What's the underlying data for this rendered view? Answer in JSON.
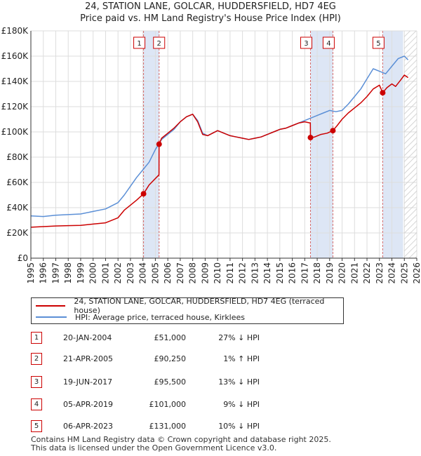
{
  "title_line1": "24, STATION LANE, GOLCAR, HUDDERSFIELD, HD7 4EG",
  "title_line2": "Price paid vs. HM Land Registry's House Price Index (HPI)",
  "colors": {
    "property": "#cc0000",
    "hpi": "#5b8fd6",
    "shade": "#dde6f5",
    "marker_line": "#d46a6a",
    "grid": "#dddddd"
  },
  "chart_data": {
    "type": "line",
    "title": "Price paid vs. HM Land Registry's House Price Index (HPI)",
    "xlabel": "",
    "ylabel": "",
    "xlim": [
      1995,
      2026
    ],
    "ylim": [
      0,
      180000
    ],
    "x_ticks": [
      "1995",
      "1996",
      "1997",
      "1998",
      "1999",
      "2000",
      "2001",
      "2002",
      "2003",
      "2004",
      "2005",
      "2006",
      "2007",
      "2008",
      "2009",
      "2010",
      "2011",
      "2012",
      "2013",
      "2014",
      "2015",
      "2016",
      "2017",
      "2018",
      "2019",
      "2020",
      "2021",
      "2022",
      "2023",
      "2024",
      "2025",
      "2026"
    ],
    "y_ticks": [
      {
        "value": 0,
        "label": "£0"
      },
      {
        "value": 20000,
        "label": "£20K"
      },
      {
        "value": 40000,
        "label": "£40K"
      },
      {
        "value": 60000,
        "label": "£60K"
      },
      {
        "value": 80000,
        "label": "£80K"
      },
      {
        "value": 100000,
        "label": "£100K"
      },
      {
        "value": 120000,
        "label": "£120K"
      },
      {
        "value": 140000,
        "label": "£140K"
      },
      {
        "value": 160000,
        "label": "£160K"
      },
      {
        "value": 180000,
        "label": "£180K"
      }
    ],
    "shaded_regions": [
      [
        2004.05,
        2005.3
      ],
      [
        2017.46,
        2019.26
      ],
      [
        2023.26,
        2024.9
      ]
    ],
    "future_hatch_from": 2025.0,
    "series": [
      {
        "name": "24, STATION LANE, GOLCAR, HUDDERSFIELD, HD7 4EG (terraced house)",
        "color": "#cc0000",
        "x": [
          1995,
          1996,
          1997,
          1998,
          1999,
          2000,
          2001,
          2002,
          2002.5,
          2003,
          2003.5,
          2004.05,
          2004.5,
          2005.29,
          2005.3,
          2005.5,
          2006,
          2006.5,
          2007,
          2007.5,
          2008,
          2008.4,
          2008.8,
          2009.2,
          2009.6,
          2010,
          2010.5,
          2011,
          2011.5,
          2012,
          2012.5,
          2013,
          2013.5,
          2014,
          2014.5,
          2015,
          2015.5,
          2016,
          2016.5,
          2017,
          2017.45,
          2017.46,
          2017.8,
          2018.3,
          2018.8,
          2019.26,
          2019.6,
          2020,
          2020.5,
          2021,
          2021.5,
          2022,
          2022.5,
          2023.0,
          2023.26,
          2023.6,
          2024,
          2024.3,
          2024.7,
          2025,
          2025.3
        ],
        "values": [
          24500,
          25000,
          25500,
          25800,
          26000,
          27000,
          28000,
          32000,
          38000,
          42000,
          46000,
          51000,
          58000,
          66000,
          90250,
          95000,
          99000,
          103000,
          108000,
          112000,
          114000,
          108000,
          98000,
          97000,
          99000,
          101000,
          99000,
          97000,
          96000,
          95000,
          94000,
          95000,
          96000,
          98000,
          100000,
          102000,
          103000,
          105000,
          107000,
          108000,
          107000,
          95500,
          96000,
          98000,
          99000,
          101000,
          105000,
          110000,
          115000,
          119000,
          123000,
          128000,
          134000,
          137000,
          131000,
          135000,
          138000,
          136000,
          141000,
          145000,
          143000
        ]
      },
      {
        "name": "HPI: Average price, terraced house, Kirklees",
        "color": "#5b8fd6",
        "x": [
          1995,
          1996,
          1997,
          1998,
          1999,
          2000,
          2001,
          2002,
          2002.5,
          2003,
          2003.5,
          2004,
          2004.5,
          2005,
          2005.5,
          2006,
          2006.5,
          2007,
          2007.5,
          2008,
          2008.4,
          2008.8,
          2009.2,
          2009.6,
          2010,
          2010.5,
          2011,
          2011.5,
          2012,
          2012.5,
          2013,
          2013.5,
          2014,
          2014.5,
          2015,
          2015.5,
          2016,
          2016.5,
          2017,
          2017.5,
          2018,
          2018.5,
          2019,
          2019.5,
          2020,
          2020.5,
          2021,
          2021.5,
          2022,
          2022.5,
          2023,
          2023.5,
          2024,
          2024.5,
          2025,
          2025.3
        ],
        "values": [
          33500,
          33000,
          34000,
          34500,
          35000,
          37000,
          39000,
          44000,
          50000,
          57000,
          64000,
          70000,
          76000,
          86000,
          94000,
          98000,
          102000,
          108000,
          112000,
          114000,
          109000,
          99000,
          97000,
          99000,
          101000,
          99000,
          97000,
          96000,
          95000,
          94000,
          95000,
          96000,
          98000,
          100000,
          102000,
          103000,
          105000,
          107000,
          109000,
          111000,
          113000,
          115000,
          117000,
          116000,
          117000,
          122000,
          128000,
          134000,
          142000,
          150000,
          148000,
          146000,
          152000,
          158000,
          160000,
          157000
        ]
      }
    ],
    "sales": [
      {
        "label": "1",
        "x": 2004.05,
        "value": 51000
      },
      {
        "label": "2",
        "x": 2005.3,
        "value": 90250
      },
      {
        "label": "3",
        "x": 2017.46,
        "value": 95500
      },
      {
        "label": "4",
        "x": 2019.26,
        "value": 101000
      },
      {
        "label": "5",
        "x": 2023.26,
        "value": 131000
      }
    ]
  },
  "legend": {
    "property": "24, STATION LANE, GOLCAR, HUDDERSFIELD, HD7 4EG (terraced house)",
    "hpi": "HPI: Average price, terraced house, Kirklees"
  },
  "transactions": [
    {
      "num": "1",
      "date": "20-JAN-2004",
      "price": "£51,000",
      "hpi": "27% ↓ HPI"
    },
    {
      "num": "2",
      "date": "21-APR-2005",
      "price": "£90,250",
      "hpi": "1% ↑ HPI"
    },
    {
      "num": "3",
      "date": "19-JUN-2017",
      "price": "£95,500",
      "hpi": "13% ↓ HPI"
    },
    {
      "num": "4",
      "date": "05-APR-2019",
      "price": "£101,000",
      "hpi": "9% ↓ HPI"
    },
    {
      "num": "5",
      "date": "06-APR-2023",
      "price": "£131,000",
      "hpi": "10% ↓ HPI"
    }
  ],
  "footer_line1": "Contains HM Land Registry data © Crown copyright and database right 2025.",
  "footer_line2": "This data is licensed under the Open Government Licence v3.0."
}
